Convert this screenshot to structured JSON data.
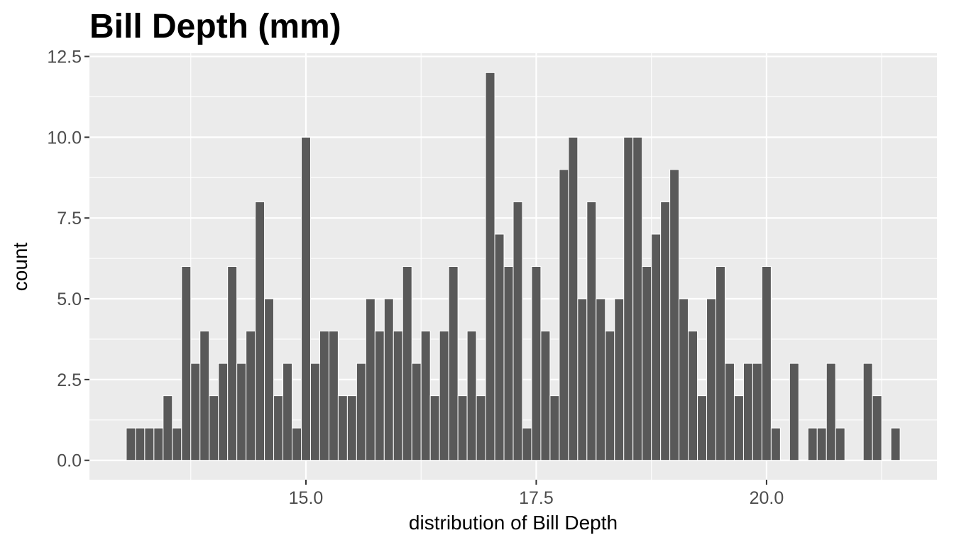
{
  "chart_data": {
    "type": "bar",
    "title": "Bill Depth (mm)",
    "xlabel": "distribution of Bill Depth",
    "ylabel": "count",
    "xlim": [
      12.65,
      21.85
    ],
    "ylim": [
      -0.6,
      12.6
    ],
    "x_ticks": [
      15.0,
      17.5,
      20.0
    ],
    "x_tick_labels": [
      "15.0",
      "17.5",
      "20.0"
    ],
    "y_ticks": [
      0,
      2.5,
      5,
      7.5,
      10,
      12.5
    ],
    "y_tick_labels": [
      "0.0",
      "2.5",
      "5.0",
      "7.5",
      "10.0",
      "12.5"
    ],
    "bin_start": 13.1,
    "bin_width": 0.1,
    "values": [
      1,
      1,
      1,
      1,
      2,
      1,
      6,
      3,
      4,
      2,
      3,
      6,
      3,
      4,
      8,
      5,
      2,
      3,
      1,
      10,
      3,
      4,
      4,
      2,
      2,
      3,
      5,
      4,
      5,
      4,
      6,
      3,
      4,
      2,
      4,
      6,
      2,
      4,
      2,
      12,
      7,
      6,
      8,
      1,
      6,
      4,
      2,
      9,
      10,
      5,
      8,
      5,
      4,
      5,
      10,
      10,
      6,
      7,
      8,
      9,
      5,
      4,
      2,
      5,
      6,
      3,
      2,
      3,
      3,
      6,
      1,
      0,
      3,
      0,
      1,
      1,
      3,
      1,
      0,
      0,
      3,
      2,
      0,
      1
    ],
    "grid": true,
    "legend": "none",
    "colors": {
      "panel": "#ebebeb",
      "grid_major": "#ffffff",
      "bar_fill": "#595959",
      "bar_stroke": "#ffffff",
      "tick": "#333333"
    }
  }
}
